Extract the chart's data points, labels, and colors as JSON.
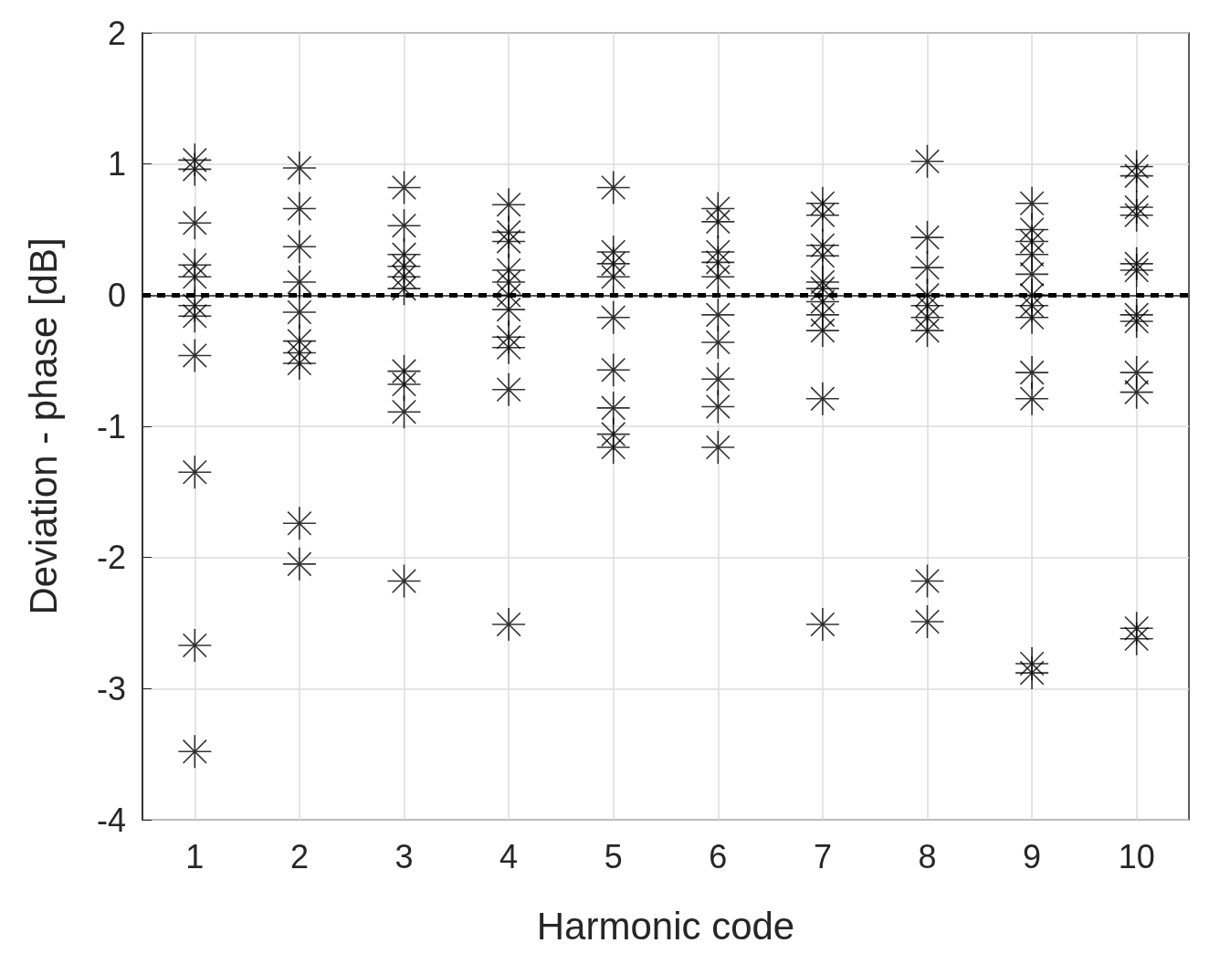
{
  "chart_data": {
    "type": "scatter",
    "xlabel": "Harmonic code",
    "ylabel": "Deviation - phase [dB]",
    "categories": [
      "1",
      "2",
      "3",
      "4",
      "5",
      "6",
      "7",
      "8",
      "9",
      "10"
    ],
    "ylim": [
      -4,
      2
    ],
    "yticks": [
      -4,
      -3,
      -2,
      -1,
      0,
      1,
      2
    ],
    "grid": true,
    "marker": "star",
    "ref_lines": [
      {
        "axis": "y",
        "value": 0,
        "color": "#000000",
        "line_style": "dashed"
      }
    ],
    "series": [
      {
        "color": "#000000",
        "x": [
          "1",
          "1",
          "1",
          "1",
          "1",
          "1",
          "1",
          "1",
          "1",
          "1",
          "1",
          "2",
          "2",
          "2",
          "2",
          "2",
          "2",
          "2",
          "2",
          "2",
          "2",
          "3",
          "3",
          "3",
          "3",
          "3",
          "3",
          "3",
          "3",
          "3",
          "3",
          "4",
          "4",
          "4",
          "4",
          "4",
          "4",
          "4",
          "4",
          "4",
          "4",
          "4",
          "5",
          "5",
          "5",
          "5",
          "5",
          "5",
          "5",
          "5",
          "5",
          "6",
          "6",
          "6",
          "6",
          "6",
          "6",
          "6",
          "6",
          "6",
          "6",
          "7",
          "7",
          "7",
          "7",
          "7",
          "7",
          "7",
          "7",
          "7",
          "7",
          "7",
          "8",
          "8",
          "8",
          "8",
          "8",
          "8",
          "8",
          "8",
          "8",
          "9",
          "9",
          "9",
          "9",
          "9",
          "9",
          "9",
          "9",
          "9",
          "9",
          "9",
          "9",
          "10",
          "10",
          "10",
          "10",
          "10",
          "10",
          "10",
          "10",
          "10",
          "10",
          "10",
          "10"
        ],
        "values": [
          1.03,
          0.96,
          0.55,
          0.23,
          0.14,
          -0.08,
          -0.16,
          -0.46,
          -1.35,
          -2.67,
          -3.48,
          0.97,
          0.66,
          0.37,
          0.1,
          -0.13,
          -0.35,
          -0.44,
          -0.52,
          -1.74,
          -2.05,
          0.82,
          0.53,
          0.31,
          0.22,
          0.14,
          0.05,
          -0.58,
          -0.68,
          -0.89,
          -2.18,
          0.69,
          0.48,
          0.41,
          0.19,
          0.1,
          0,
          -0.11,
          -0.32,
          -0.4,
          -0.72,
          -2.51,
          0.82,
          0.33,
          0.24,
          0.14,
          -0.17,
          -0.57,
          -0.86,
          -1.06,
          -1.16,
          0.66,
          0.56,
          0.33,
          0.25,
          0.14,
          -0.15,
          -0.36,
          -0.64,
          -0.85,
          -1.16,
          0.7,
          0.61,
          0.38,
          0.3,
          0.1,
          0.05,
          -0.05,
          -0.15,
          -0.27,
          -0.79,
          -2.51,
          1.02,
          0.44,
          0.21,
          0,
          -0.08,
          -0.17,
          -0.27,
          -2.18,
          -2.49,
          0.7,
          0.5,
          0.41,
          0.31,
          0.16,
          0,
          -0.08,
          -0.17,
          -0.59,
          -0.79,
          -2.81,
          -2.88,
          0.98,
          0.91,
          0.67,
          0.61,
          0.24,
          0.19,
          -0.15,
          -0.2,
          -0.59,
          -0.74,
          -2.54,
          -2.62
        ]
      }
    ]
  }
}
